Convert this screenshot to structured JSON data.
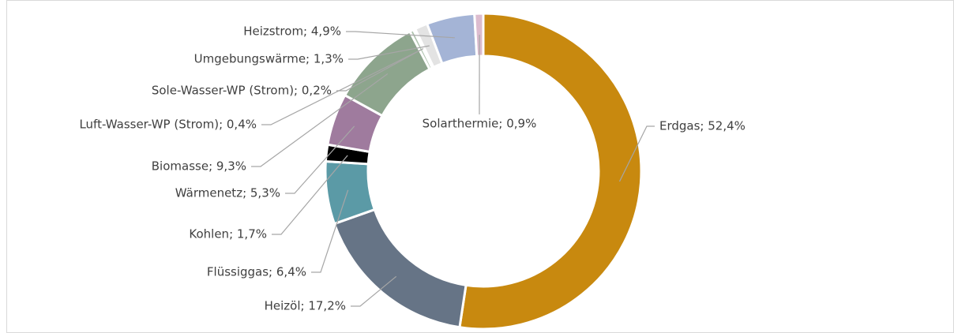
{
  "chart_data": {
    "type": "donut",
    "values": [
      52.4,
      17.2,
      6.4,
      1.7,
      5.3,
      9.3,
      0.4,
      0.2,
      1.3,
      4.9,
      0.9
    ],
    "value_labels": [
      "Erdgas; 52,4%",
      "Heizöl; 17,2%",
      "Flüssiggas; 6,4%",
      "Kohlen; 1,7%",
      "Wärmenetz; 5,3%",
      "Biomasse; 9,3%",
      "Luft-Wasser-WP (Strom); 0,4%",
      "Sole-Wasser-WP (Strom); 0,2%",
      "Umgebungswärme; 1,3%",
      "Heizstrom; 4,9%",
      "Solarthermie; 0,9%"
    ],
    "colors": [
      "#c8890f",
      "#667486",
      "#5b9aa6",
      "#000000",
      "#9f7b9e",
      "#8da58d",
      "#b0c4b0",
      "#ffffff",
      "#e3e3e3",
      "#a4b4d6",
      "#dcbccf"
    ]
  }
}
